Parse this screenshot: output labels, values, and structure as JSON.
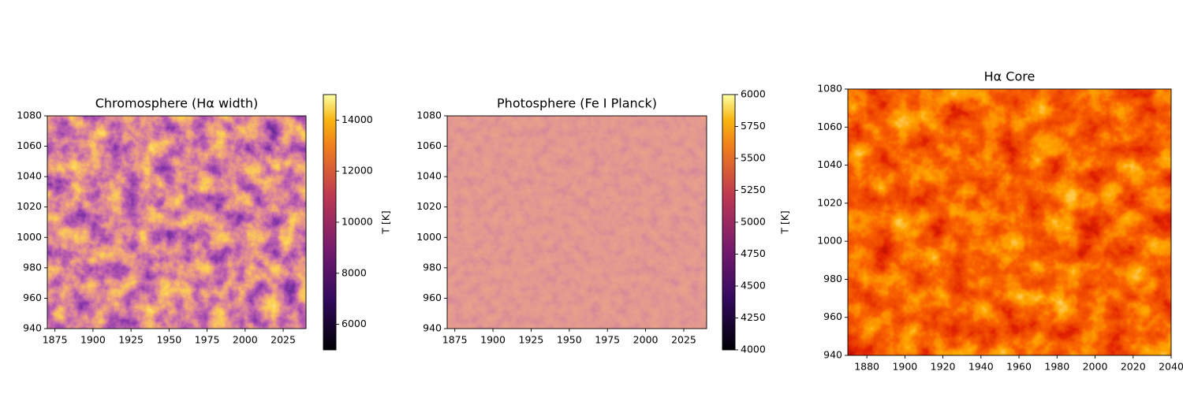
{
  "chart_data": [
    {
      "type": "heatmap",
      "title": "Chromosphere (Hα width)",
      "colormap": "inferno",
      "xlim": [
        1870,
        2040
      ],
      "ylim": [
        940,
        1080
      ],
      "xticks": [
        1875,
        1900,
        1925,
        1950,
        1975,
        2000,
        2025
      ],
      "yticks": [
        940,
        960,
        980,
        1000,
        1020,
        1040,
        1060,
        1080
      ],
      "colorbar": {
        "label": "T [K]",
        "lim": [
          5000,
          15000
        ],
        "ticks": [
          6000,
          8000,
          10000,
          12000,
          14000
        ]
      }
    },
    {
      "type": "heatmap",
      "title": "Photosphere (Fe I Planck)",
      "colormap": "inferno",
      "xlim": [
        1870,
        2040
      ],
      "ylim": [
        940,
        1080
      ],
      "xticks": [
        1875,
        1900,
        1925,
        1950,
        1975,
        2000,
        2025
      ],
      "yticks": [
        940,
        960,
        980,
        1000,
        1020,
        1040,
        1060,
        1080
      ],
      "colorbar": {
        "label": "T [K]",
        "lim": [
          4000,
          6000
        ],
        "ticks": [
          4000,
          4250,
          4500,
          4750,
          5000,
          5250,
          5500,
          5750,
          6000
        ]
      }
    },
    {
      "type": "heatmap",
      "title": "Hα Core",
      "colormap": "hot",
      "xlim": [
        1870,
        2040
      ],
      "ylim": [
        940,
        1080
      ],
      "xticks": [
        1880,
        1900,
        1920,
        1940,
        1960,
        1980,
        2000,
        2020,
        2040
      ],
      "yticks": [
        940,
        960,
        980,
        1000,
        1020,
        1040,
        1060,
        1080
      ]
    }
  ]
}
